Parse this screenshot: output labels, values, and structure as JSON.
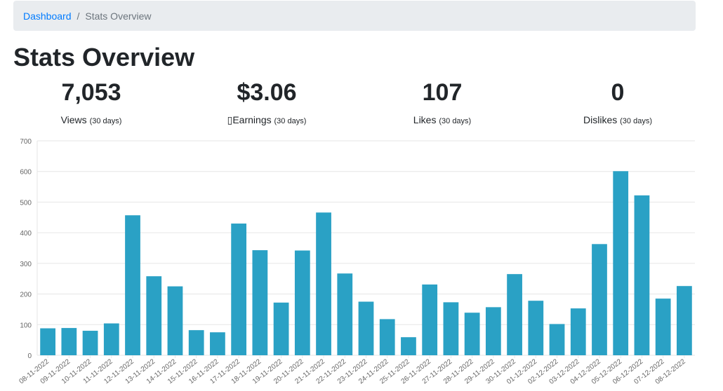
{
  "breadcrumb": {
    "home": "Dashboard",
    "separator": "/",
    "current": "Stats Overview"
  },
  "page_title": "Stats Overview",
  "stats": [
    {
      "value": "7,053",
      "label": "Views",
      "sub": "(30 days)"
    },
    {
      "value": "$3.06",
      "label": "▯Earnings",
      "sub": "(30 days)"
    },
    {
      "value": "107",
      "label": "Likes",
      "sub": "(30 days)"
    },
    {
      "value": "0",
      "label": "Dislikes",
      "sub": "(30 days)"
    }
  ],
  "colors": {
    "bar": "#2aa1c5",
    "link": "#007bff",
    "breadcrumb_bg": "#e9ecef",
    "grid": "#e6e6e6",
    "axis_text": "#666666"
  },
  "chart_data": {
    "type": "bar",
    "categories": [
      "08-11-2022",
      "09-11-2022",
      "10-11-2022",
      "11-11-2022",
      "12-11-2022",
      "13-11-2022",
      "14-11-2022",
      "15-11-2022",
      "16-11-2022",
      "17-11-2022",
      "18-11-2022",
      "19-11-2022",
      "20-11-2022",
      "21-11-2022",
      "22-11-2022",
      "23-11-2022",
      "24-11-2022",
      "25-11-2022",
      "26-11-2022",
      "27-11-2022",
      "28-11-2022",
      "29-11-2022",
      "30-11-2022",
      "01-12-2022",
      "02-12-2022",
      "03-12-2022",
      "04-12-2022",
      "05-12-2022",
      "06-12-2022",
      "07-12-2022",
      "08-12-2022"
    ],
    "values": [
      88,
      89,
      80,
      104,
      457,
      258,
      225,
      82,
      75,
      430,
      343,
      172,
      342,
      466,
      267,
      175,
      118,
      59,
      231,
      173,
      139,
      157,
      265,
      178,
      102,
      153,
      363,
      601,
      522,
      185,
      226
    ],
    "ylim": [
      0,
      700
    ],
    "yticks": [
      0,
      100,
      200,
      300,
      400,
      500,
      600,
      700
    ],
    "grid": true,
    "legend": "none"
  }
}
